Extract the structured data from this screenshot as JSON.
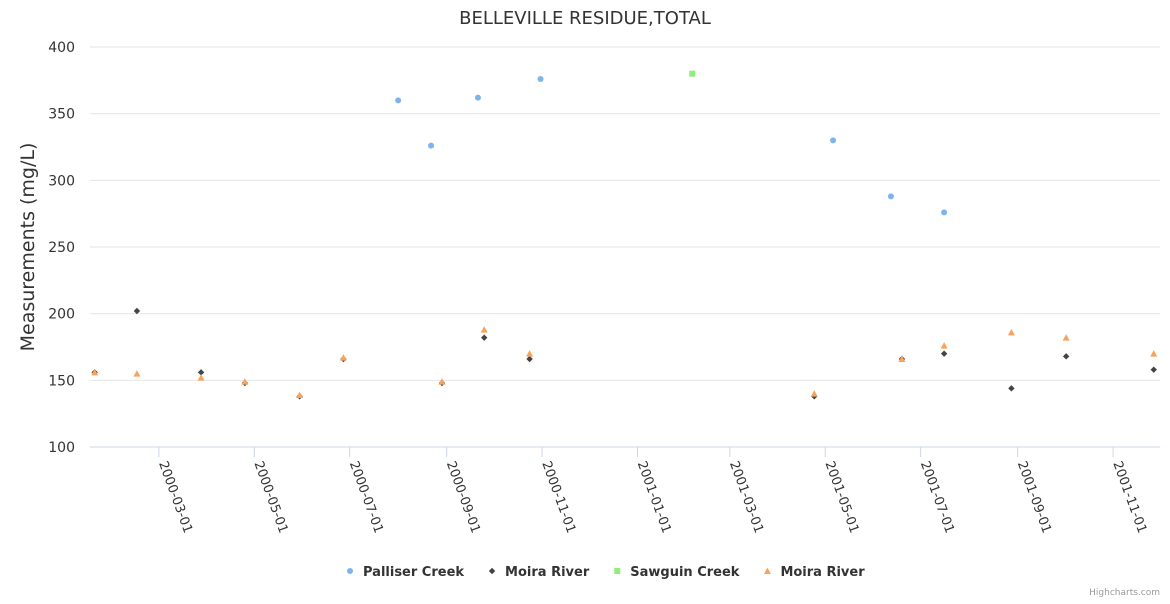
{
  "chart_data": {
    "type": "scatter",
    "title": "BELLEVILLE RESIDUE,TOTAL",
    "xlabel": "",
    "ylabel": "Measurements (mg/L)",
    "ylim": [
      100,
      400
    ],
    "yticks": [
      "100",
      "150",
      "200",
      "250",
      "300",
      "350",
      "400"
    ],
    "xlim": [
      "2000-01-17",
      "2001-12-01"
    ],
    "xticks": [
      "2000-03-01",
      "2000-05-01",
      "2000-07-01",
      "2000-09-01",
      "2000-11-01",
      "2001-01-01",
      "2001-03-01",
      "2001-05-01",
      "2001-07-01",
      "2001-09-01",
      "2001-11-01"
    ],
    "grid": true,
    "legend_position": "bottom-center",
    "credits": "Highcharts.com",
    "series": [
      {
        "name": "Palliser Creek",
        "color": "#7cb5ec",
        "marker": "circle",
        "points": [
          {
            "x": "2000-08-01",
            "y": 360
          },
          {
            "x": "2000-08-22",
            "y": 326
          },
          {
            "x": "2000-09-21",
            "y": 362
          },
          {
            "x": "2000-10-31",
            "y": 376
          },
          {
            "x": "2001-05-06",
            "y": 330
          },
          {
            "x": "2001-06-12",
            "y": 288
          },
          {
            "x": "2001-07-16",
            "y": 276
          }
        ]
      },
      {
        "name": "Moira River",
        "color": "#434348",
        "marker": "diamond",
        "points": [
          {
            "x": "2000-01-20",
            "y": 156
          },
          {
            "x": "2000-02-16",
            "y": 202
          },
          {
            "x": "2000-03-28",
            "y": 156
          },
          {
            "x": "2000-04-25",
            "y": 148
          },
          {
            "x": "2000-05-30",
            "y": 138
          },
          {
            "x": "2000-06-27",
            "y": 166
          },
          {
            "x": "2000-08-29",
            "y": 148
          },
          {
            "x": "2000-09-25",
            "y": 182
          },
          {
            "x": "2000-10-24",
            "y": 166
          },
          {
            "x": "2001-04-24",
            "y": 138
          },
          {
            "x": "2001-06-19",
            "y": 166
          },
          {
            "x": "2001-07-16",
            "y": 170
          },
          {
            "x": "2001-08-28",
            "y": 144
          },
          {
            "x": "2001-10-02",
            "y": 168
          },
          {
            "x": "2001-11-27",
            "y": 158
          }
        ]
      },
      {
        "name": "Sawguin Creek",
        "color": "#90ed7d",
        "marker": "square",
        "points": [
          {
            "x": "2001-02-05",
            "y": 380
          }
        ]
      },
      {
        "name": "Moira River",
        "color": "#f7a35c",
        "marker": "triangle",
        "points": [
          {
            "x": "2000-01-20",
            "y": 156
          },
          {
            "x": "2000-02-16",
            "y": 155
          },
          {
            "x": "2000-03-28",
            "y": 152
          },
          {
            "x": "2000-04-25",
            "y": 149
          },
          {
            "x": "2000-05-30",
            "y": 139
          },
          {
            "x": "2000-06-27",
            "y": 167
          },
          {
            "x": "2000-08-29",
            "y": 149
          },
          {
            "x": "2000-09-25",
            "y": 188
          },
          {
            "x": "2000-10-24",
            "y": 170
          },
          {
            "x": "2001-04-24",
            "y": 140
          },
          {
            "x": "2001-06-19",
            "y": 166
          },
          {
            "x": "2001-07-16",
            "y": 176
          },
          {
            "x": "2001-08-28",
            "y": 186
          },
          {
            "x": "2001-10-02",
            "y": 182
          },
          {
            "x": "2001-11-27",
            "y": 170
          }
        ]
      }
    ]
  }
}
